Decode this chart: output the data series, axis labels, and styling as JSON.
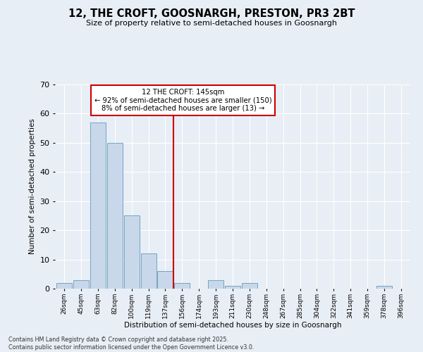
{
  "title": "12, THE CROFT, GOOSNARGH, PRESTON, PR3 2BT",
  "subtitle": "Size of property relative to semi-detached houses in Goosnargh",
  "xlabel": "Distribution of semi-detached houses by size in Goosnargh",
  "ylabel": "Number of semi-detached properties",
  "bin_labels": [
    "26sqm",
    "45sqm",
    "63sqm",
    "82sqm",
    "100sqm",
    "119sqm",
    "137sqm",
    "156sqm",
    "174sqm",
    "193sqm",
    "211sqm",
    "230sqm",
    "248sqm",
    "267sqm",
    "285sqm",
    "304sqm",
    "322sqm",
    "341sqm",
    "359sqm",
    "378sqm",
    "396sqm"
  ],
  "bar_values": [
    2,
    3,
    57,
    50,
    25,
    12,
    6,
    2,
    0,
    3,
    1,
    2,
    0,
    0,
    0,
    0,
    0,
    0,
    0,
    1,
    0
  ],
  "bar_color": "#c8d8ea",
  "bar_edge_color": "#6699bb",
  "property_line_x": 6.5,
  "property_line_color": "#cc0000",
  "annotation_title": "12 THE CROFT: 145sqm",
  "annotation_line1": "← 92% of semi-detached houses are smaller (150)",
  "annotation_line2": "8% of semi-detached houses are larger (13) →",
  "annotation_box_color": "#cc0000",
  "ylim": [
    0,
    70
  ],
  "yticks": [
    0,
    10,
    20,
    30,
    40,
    50,
    60,
    70
  ],
  "background_color": "#e8eef5",
  "grid_color": "#ffffff",
  "footer_line1": "Contains HM Land Registry data © Crown copyright and database right 2025.",
  "footer_line2": "Contains public sector information licensed under the Open Government Licence v3.0."
}
